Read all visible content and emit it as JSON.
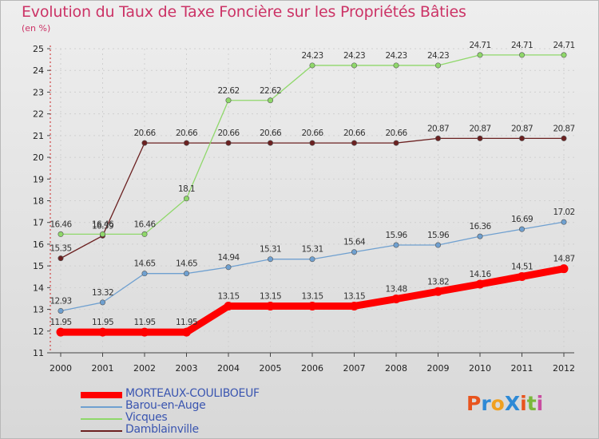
{
  "title": "Evolution du Taux de Taxe Foncière sur les Propriétés Bâties",
  "subtitle": "(en %)",
  "logo": {
    "text": "ProXiti",
    "colors": [
      "#e8541e",
      "#2e8ad6",
      "#f0a020",
      "#2e8ad6",
      "#e8541e",
      "#7ab83a",
      "#c94ea0"
    ]
  },
  "chart_data": {
    "type": "line",
    "title": "Evolution du Taux de Taxe Foncière sur les Propriétés Bâties",
    "ylabel": "(en %)",
    "xlabel": "",
    "ylim": [
      11,
      25
    ],
    "yticks": [
      11,
      12,
      13,
      14,
      15,
      16,
      17,
      18,
      19,
      20,
      21,
      22,
      23,
      24,
      25
    ],
    "categories": [
      "2000",
      "2001",
      "2002",
      "2003",
      "2004",
      "2005",
      "2006",
      "2007",
      "2008",
      "2009",
      "2010",
      "2011",
      "2012"
    ],
    "series": [
      {
        "name": "MORTEAUX-COULIBOEUF",
        "color": "#ff0000",
        "values": [
          11.95,
          11.95,
          11.95,
          11.95,
          13.15,
          13.15,
          13.15,
          13.15,
          13.48,
          13.82,
          14.16,
          14.51,
          14.87
        ],
        "labels": [
          "11.95",
          "11.95",
          "11.95",
          "11.95",
          "13.15",
          "13.15",
          "13.15",
          "13.15",
          "13.48",
          "13.82",
          "14.16",
          "14.51",
          "14.87"
        ]
      },
      {
        "name": "Barou-en-Auge",
        "color": "#6fa0d0",
        "values": [
          12.93,
          13.32,
          14.65,
          14.65,
          14.94,
          15.31,
          15.31,
          15.64,
          15.96,
          15.96,
          16.36,
          16.69,
          17.02
        ],
        "labels": [
          "12.93",
          "13.32",
          "14.65",
          "14.65",
          "14.94",
          "15.31",
          "15.31",
          "15.64",
          "15.96",
          "15.96",
          "16.36",
          "16.69",
          "17.02"
        ]
      },
      {
        "name": "Vicques",
        "color": "#8fd86a",
        "values": [
          16.46,
          16.46,
          16.46,
          18.1,
          22.62,
          22.62,
          24.23,
          24.23,
          24.23,
          24.23,
          24.71,
          24.71,
          24.71
        ],
        "labels": [
          "16.46",
          "16.46",
          "16.46",
          "18.1",
          "22.62",
          "22.62",
          "24.23",
          "24.23",
          "24.23",
          "24.23",
          "24.71",
          "24.71",
          "24.71"
        ]
      },
      {
        "name": "Damblainville",
        "color": "#6b2020",
        "values": [
          15.35,
          16.39,
          20.66,
          20.66,
          20.66,
          20.66,
          20.66,
          20.66,
          20.66,
          20.87,
          20.87,
          20.87,
          20.87
        ],
        "labels": [
          "15.35",
          "16.39",
          "20.66",
          "20.66",
          "20.66",
          "20.66",
          "20.66",
          "20.66",
          "20.66",
          "20.87",
          "20.87",
          "20.87",
          "20.87"
        ]
      }
    ],
    "legend": {
      "position": "bottom-left"
    }
  }
}
